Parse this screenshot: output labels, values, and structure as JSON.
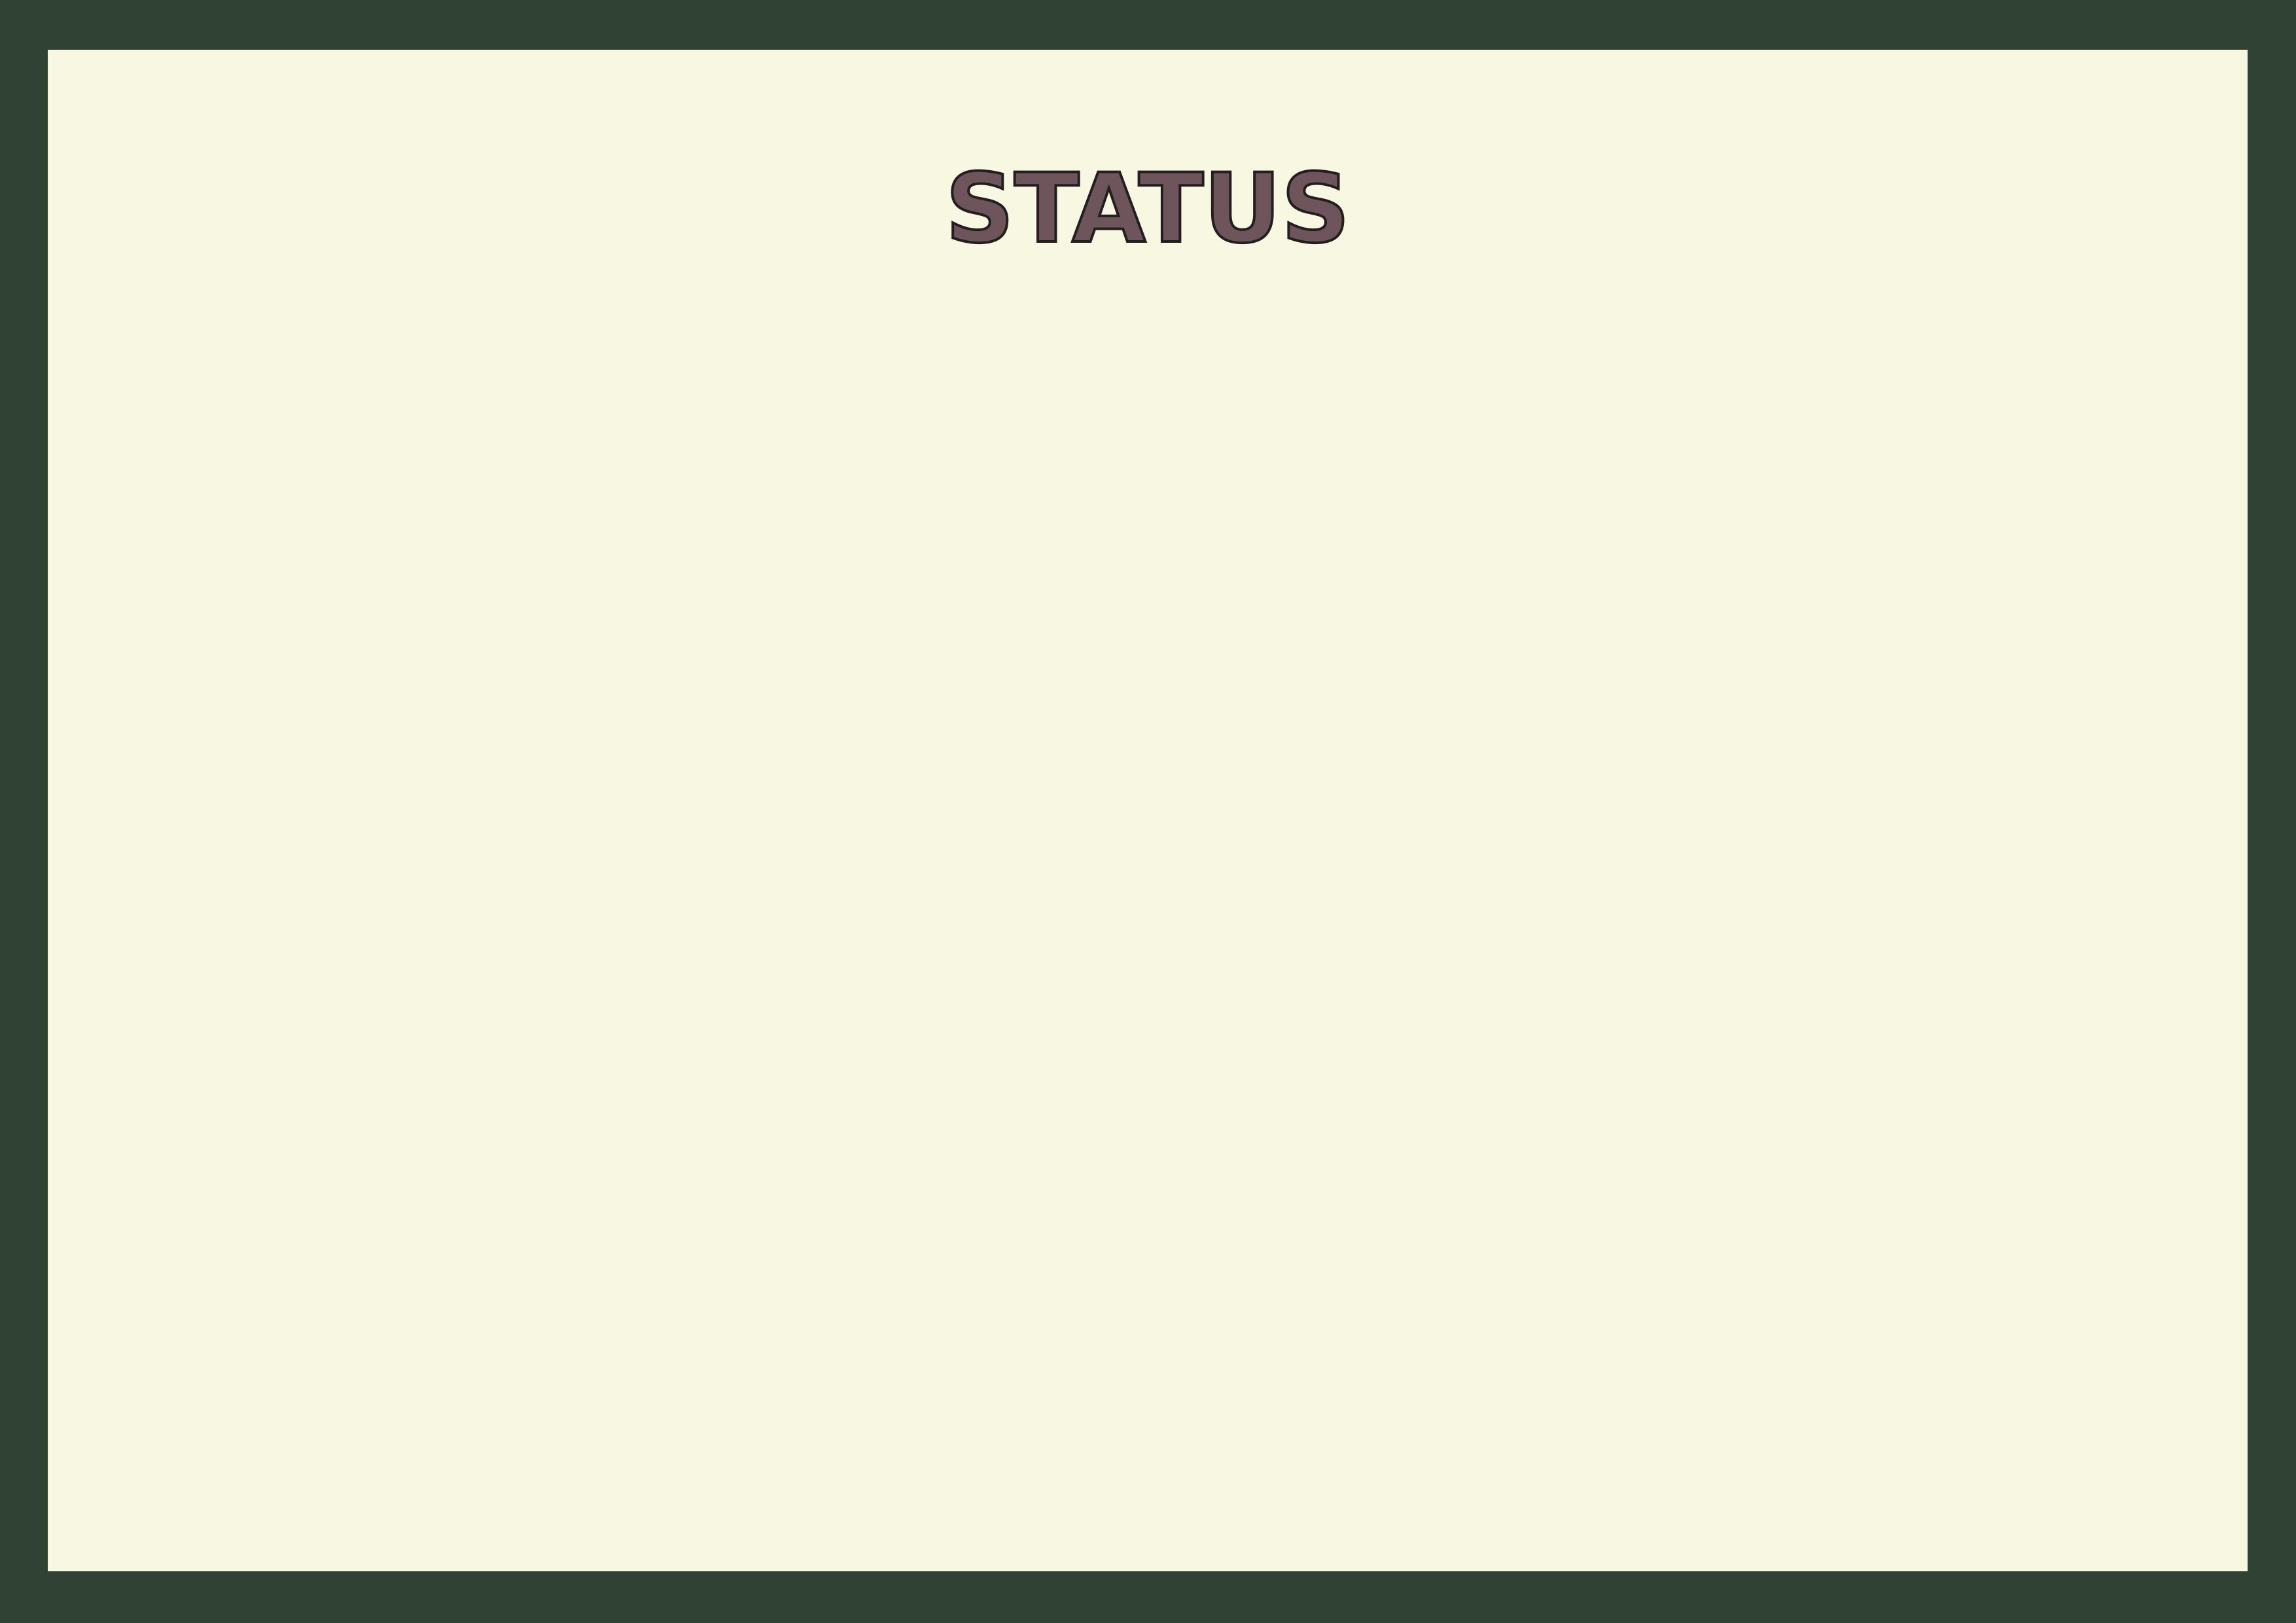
{
  "title": "STATUS",
  "colors": {
    "frame": "#2f4234",
    "board": "#f8f7e1",
    "title_fill": "#6e545b",
    "title_outline": "#231f20"
  }
}
